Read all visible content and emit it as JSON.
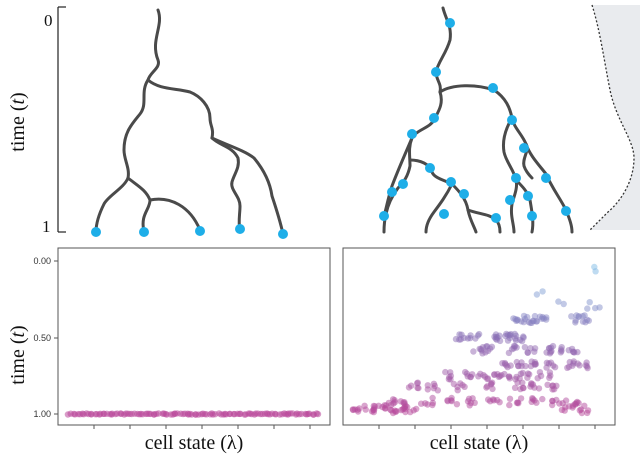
{
  "colors": {
    "branch": "#4a4a4a",
    "node": "#1eaee8",
    "panel_border": "#555555",
    "density_fill": "#e9ebee",
    "density_line": "#333333",
    "point_early": "#7ec3ea",
    "point_mid": "#8a6fb6",
    "point_late": "#b9489a"
  },
  "top_axis": {
    "label_main": "time (",
    "label_var": "t",
    "label_close": ")",
    "tick_top": "0",
    "tick_bottom": "1"
  },
  "bottom_axis": {
    "label_main": "time (",
    "label_var": "t",
    "label_close": ")",
    "ticks": [
      "0.00",
      "0.50",
      "1.00"
    ]
  },
  "xlabels": {
    "left": "cell state (λ)",
    "right": "cell state (λ)"
  },
  "chart_data": [
    {
      "type": "scatter",
      "panel": "left",
      "title": "",
      "xlabel": "cell state (λ)",
      "ylabel": "time (t)",
      "y_ticks": [
        0.0,
        0.5,
        1.0
      ],
      "ylim": [
        0.0,
        1.0
      ],
      "y_inverted": true,
      "xlim": [
        0,
        1
      ],
      "description_of_points": "all points at t = 1.00 spread across cell state 0.02–0.98",
      "points_t": 1.0,
      "points_x_range": [
        0.02,
        0.98
      ]
    },
    {
      "type": "scatter",
      "panel": "right",
      "title": "",
      "xlabel": "cell state (λ)",
      "ylabel": "time (t)",
      "y_ticks": [
        0.0,
        0.5,
        1.0
      ],
      "ylim": [
        0.0,
        1.0
      ],
      "y_inverted": true,
      "xlim": [
        0,
        1
      ],
      "clusters": [
        {
          "t": 0.06,
          "x": [
            0.96
          ]
        },
        {
          "t": 0.22,
          "x": [
            0.72
          ]
        },
        {
          "t": 0.29,
          "x": [
            0.83,
            0.93,
            0.95
          ]
        },
        {
          "t": 0.38,
          "x": [
            0.64,
            0.68,
            0.7,
            0.74,
            0.88,
            0.9
          ]
        },
        {
          "t": 0.5,
          "x": [
            0.42,
            0.48,
            0.55,
            0.6,
            0.62,
            0.66
          ]
        },
        {
          "t": 0.58,
          "x": [
            0.5,
            0.55,
            0.62,
            0.7,
            0.76,
            0.8,
            0.86
          ]
        },
        {
          "t": 0.68,
          "x": [
            0.6,
            0.66,
            0.72,
            0.78,
            0.84,
            0.9
          ]
        },
        {
          "t": 0.75,
          "x": [
            0.38,
            0.45,
            0.52,
            0.58,
            0.62,
            0.68,
            0.75
          ]
        },
        {
          "t": 0.82,
          "x": [
            0.25,
            0.32,
            0.42,
            0.55,
            0.65,
            0.72,
            0.78
          ]
        },
        {
          "t": 0.92,
          "x": [
            0.15,
            0.2,
            0.3,
            0.4,
            0.48,
            0.56,
            0.64,
            0.72,
            0.8,
            0.86
          ]
        },
        {
          "t": 0.97,
          "x": [
            0.04,
            0.08,
            0.12,
            0.16,
            0.2,
            0.24,
            0.84,
            0.9
          ]
        }
      ]
    }
  ]
}
